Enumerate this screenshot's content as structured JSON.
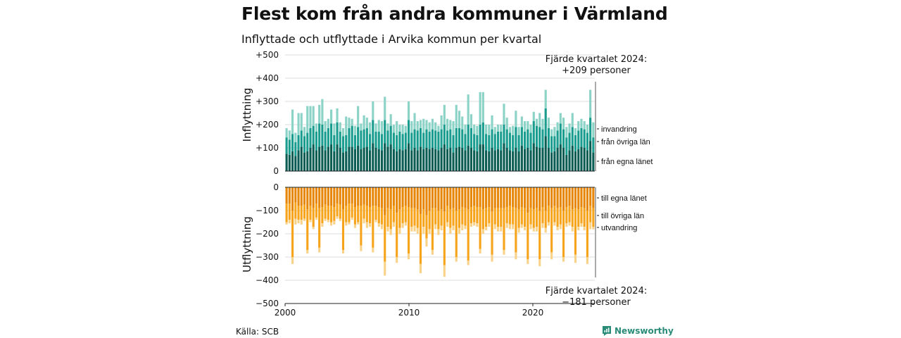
{
  "title": "Flest kom från andra kommuner i Värmland",
  "subtitle": "Inflyttade och utflyttade i Arvika kommun per kvartal",
  "source": "Källa: SCB",
  "brand": {
    "name": "Newsworthy",
    "color": "#2a8c78"
  },
  "colors": {
    "in_lan": "#0b5c53",
    "in_ovriga": "#1a9d8e",
    "in_invandring": "#8cd3c7",
    "out_lan": "#e6870a",
    "out_ovriga": "#f7a41d",
    "out_utvandring": "#f9d28a"
  },
  "chart_data": [
    {
      "type": "bar",
      "stacked": true,
      "ylabel": "Inflyttning",
      "ylim": [
        0,
        500
      ],
      "yticks": [
        0,
        100,
        200,
        300,
        400,
        500
      ],
      "ytick_labels": [
        "0",
        "+100",
        "+200",
        "+300",
        "+400",
        "+500"
      ],
      "x_start": 2000,
      "x_end": 2025,
      "xticks": [
        2000,
        2010,
        2020
      ],
      "xtick_labels": [
        "2000",
        "2010",
        "2020"
      ],
      "series": [
        {
          "name": "från egna länet"
        },
        {
          "name": "från övriga län"
        },
        {
          "name": "invandring"
        }
      ],
      "values": [
        [
          75,
          70,
          40
        ],
        [
          70,
          65,
          40
        ],
        [
          85,
          75,
          105
        ],
        [
          65,
          60,
          40
        ],
        [
          90,
          65,
          95
        ],
        [
          105,
          70,
          75
        ],
        [
          80,
          70,
          40
        ],
        [
          85,
          80,
          115
        ],
        [
          100,
          85,
          95
        ],
        [
          115,
          80,
          85
        ],
        [
          90,
          80,
          35
        ],
        [
          105,
          100,
          80
        ],
        [
          110,
          90,
          110
        ],
        [
          90,
          80,
          45
        ],
        [
          105,
          80,
          40
        ],
        [
          115,
          90,
          60
        ],
        [
          85,
          70,
          50
        ],
        [
          115,
          95,
          60
        ],
        [
          100,
          70,
          40
        ],
        [
          80,
          70,
          35
        ],
        [
          85,
          70,
          80
        ],
        [
          105,
          80,
          45
        ],
        [
          105,
          90,
          30
        ],
        [
          95,
          60,
          40
        ],
        [
          110,
          80,
          90
        ],
        [
          95,
          80,
          30
        ],
        [
          100,
          80,
          60
        ],
        [
          105,
          80,
          45
        ],
        [
          90,
          70,
          50
        ],
        [
          120,
          100,
          80
        ],
        [
          100,
          70,
          35
        ],
        [
          95,
          75,
          50
        ],
        [
          90,
          70,
          55
        ],
        [
          120,
          100,
          100
        ],
        [
          105,
          70,
          30
        ],
        [
          115,
          80,
          50
        ],
        [
          95,
          70,
          35
        ],
        [
          85,
          70,
          60
        ],
        [
          95,
          75,
          30
        ],
        [
          90,
          70,
          40
        ],
        [
          95,
          70,
          30
        ],
        [
          120,
          100,
          80
        ],
        [
          90,
          75,
          50
        ],
        [
          100,
          80,
          70
        ],
        [
          90,
          85,
          40
        ],
        [
          105,
          80,
          35
        ],
        [
          95,
          70,
          60
        ],
        [
          100,
          80,
          40
        ],
        [
          95,
          75,
          40
        ],
        [
          100,
          80,
          45
        ],
        [
          95,
          80,
          35
        ],
        [
          90,
          80,
          25
        ],
        [
          100,
          80,
          60
        ],
        [
          115,
          85,
          85
        ],
        [
          95,
          80,
          50
        ],
        [
          100,
          80,
          40
        ],
        [
          80,
          75,
          60
        ],
        [
          100,
          85,
          100
        ],
        [
          105,
          80,
          75
        ],
        [
          100,
          80,
          55
        ],
        [
          90,
          70,
          40
        ],
        [
          110,
          90,
          130
        ],
        [
          100,
          85,
          60
        ],
        [
          90,
          70,
          40
        ],
        [
          85,
          70,
          40
        ],
        [
          115,
          85,
          140
        ],
        [
          115,
          95,
          130
        ],
        [
          90,
          70,
          40
        ],
        [
          85,
          70,
          45
        ],
        [
          100,
          80,
          60
        ],
        [
          90,
          70,
          30
        ],
        [
          95,
          75,
          30
        ],
        [
          90,
          80,
          30
        ],
        [
          120,
          80,
          90
        ],
        [
          100,
          80,
          50
        ],
        [
          90,
          75,
          25
        ],
        [
          85,
          70,
          40
        ],
        [
          100,
          90,
          70
        ],
        [
          85,
          70,
          35
        ],
        [
          110,
          80,
          45
        ],
        [
          95,
          75,
          45
        ],
        [
          100,
          80,
          35
        ],
        [
          90,
          75,
          35
        ],
        [
          120,
          95,
          40
        ],
        [
          105,
          90,
          30
        ],
        [
          100,
          90,
          60
        ],
        [
          100,
          80,
          45
        ],
        [
          150,
          120,
          80
        ],
        [
          100,
          85,
          45
        ],
        [
          80,
          70,
          30
        ],
        [
          85,
          65,
          40
        ],
        [
          100,
          75,
          35
        ],
        [
          115,
          90,
          45
        ],
        [
          100,
          80,
          50
        ],
        [
          70,
          75,
          45
        ],
        [
          90,
          75,
          40
        ],
        [
          110,
          80,
          60
        ],
        [
          85,
          70,
          30
        ],
        [
          95,
          80,
          40
        ],
        [
          105,
          80,
          40
        ],
        [
          100,
          80,
          35
        ],
        [
          90,
          75,
          35
        ],
        [
          130,
          100,
          120
        ],
        [
          80,
          65,
          65
        ]
      ],
      "annotation": {
        "line1": "Fjärde kvartalet 2024:",
        "line2": "+209 personer"
      }
    },
    {
      "type": "bar",
      "stacked": true,
      "ylabel": "Utflyttning",
      "ylim": [
        -500,
        0
      ],
      "yticks": [
        0,
        -100,
        -200,
        -300,
        -400,
        -500
      ],
      "ytick_labels": [
        "0",
        "−100",
        "−200",
        "−300",
        "−400",
        "−500"
      ],
      "x_start": 2000,
      "x_end": 2025,
      "xticks": [
        2000,
        2010,
        2020
      ],
      "xtick_labels": [
        "2000",
        "2010",
        "2020"
      ],
      "series": [
        {
          "name": "till egna länet"
        },
        {
          "name": "till övriga län"
        },
        {
          "name": "utvandring"
        }
      ],
      "values": [
        [
          70,
          80,
          10
        ],
        [
          70,
          70,
          15
        ],
        [
          100,
          200,
          30
        ],
        [
          65,
          70,
          25
        ],
        [
          80,
          60,
          15
        ],
        [
          80,
          60,
          20
        ],
        [
          75,
          60,
          10
        ],
        [
          95,
          175,
          15
        ],
        [
          80,
          60,
          10
        ],
        [
          90,
          80,
          10
        ],
        [
          70,
          60,
          10
        ],
        [
          90,
          170,
          20
        ],
        [
          85,
          70,
          15
        ],
        [
          75,
          60,
          10
        ],
        [
          80,
          60,
          10
        ],
        [
          80,
          70,
          15
        ],
        [
          85,
          60,
          15
        ],
        [
          70,
          55,
          10
        ],
        [
          75,
          60,
          10
        ],
        [
          95,
          175,
          15
        ],
        [
          80,
          70,
          15
        ],
        [
          70,
          80,
          10
        ],
        [
          70,
          60,
          10
        ],
        [
          85,
          75,
          15
        ],
        [
          80,
          70,
          10
        ],
        [
          80,
          170,
          25
        ],
        [
          75,
          60,
          20
        ],
        [
          80,
          70,
          25
        ],
        [
          85,
          70,
          15
        ],
        [
          80,
          180,
          20
        ],
        [
          80,
          60,
          10
        ],
        [
          85,
          70,
          15
        ],
        [
          90,
          70,
          20
        ],
        [
          120,
          200,
          60
        ],
        [
          90,
          80,
          20
        ],
        [
          95,
          85,
          25
        ],
        [
          80,
          70,
          20
        ],
        [
          110,
          190,
          25
        ],
        [
          95,
          80,
          25
        ],
        [
          85,
          70,
          20
        ],
        [
          80,
          70,
          15
        ],
        [
          85,
          200,
          25
        ],
        [
          90,
          80,
          20
        ],
        [
          90,
          75,
          25
        ],
        [
          95,
          80,
          25
        ],
        [
          115,
          215,
          40
        ],
        [
          95,
          75,
          30
        ],
        [
          120,
          100,
          35
        ],
        [
          100,
          80,
          20
        ],
        [
          90,
          180,
          20
        ],
        [
          90,
          70,
          20
        ],
        [
          100,
          80,
          25
        ],
        [
          95,
          70,
          20
        ],
        [
          105,
          230,
          50
        ],
        [
          80,
          70,
          20
        ],
        [
          95,
          80,
          25
        ],
        [
          90,
          75,
          20
        ],
        [
          100,
          200,
          20
        ],
        [
          95,
          80,
          25
        ],
        [
          85,
          75,
          25
        ],
        [
          90,
          75,
          15
        ],
        [
          95,
          220,
          20
        ],
        [
          85,
          70,
          15
        ],
        [
          80,
          70,
          15
        ],
        [
          85,
          70,
          15
        ],
        [
          85,
          180,
          20
        ],
        [
          95,
          85,
          20
        ],
        [
          90,
          80,
          15
        ],
        [
          85,
          70,
          15
        ],
        [
          105,
          185,
          30
        ],
        [
          90,
          70,
          20
        ],
        [
          90,
          80,
          20
        ],
        [
          90,
          80,
          20
        ],
        [
          90,
          180,
          20
        ],
        [
          85,
          70,
          20
        ],
        [
          80,
          80,
          20
        ],
        [
          85,
          75,
          20
        ],
        [
          90,
          190,
          30
        ],
        [
          95,
          80,
          20
        ],
        [
          85,
          75,
          15
        ],
        [
          90,
          80,
          15
        ],
        [
          110,
          200,
          20
        ],
        [
          90,
          70,
          20
        ],
        [
          95,
          80,
          15
        ],
        [
          90,
          80,
          20
        ],
        [
          100,
          210,
          30
        ],
        [
          85,
          70,
          20
        ],
        [
          100,
          75,
          20
        ],
        [
          80,
          70,
          15
        ],
        [
          90,
          190,
          30
        ],
        [
          80,
          70,
          15
        ],
        [
          90,
          80,
          15
        ],
        [
          85,
          75,
          20
        ],
        [
          100,
          200,
          20
        ],
        [
          85,
          70,
          15
        ],
        [
          80,
          70,
          15
        ],
        [
          95,
          75,
          20
        ],
        [
          90,
          200,
          35
        ],
        [
          95,
          75,
          15
        ],
        [
          85,
          70,
          15
        ],
        [
          90,
          80,
          15
        ],
        [
          100,
          200,
          30
        ],
        [
          80,
          70,
          30
        ],
        [
          90,
          80,
          11
        ]
      ],
      "annotation": {
        "line1": "Fjärde kvartalet 2024:",
        "line2": "−181 personer"
      }
    }
  ]
}
